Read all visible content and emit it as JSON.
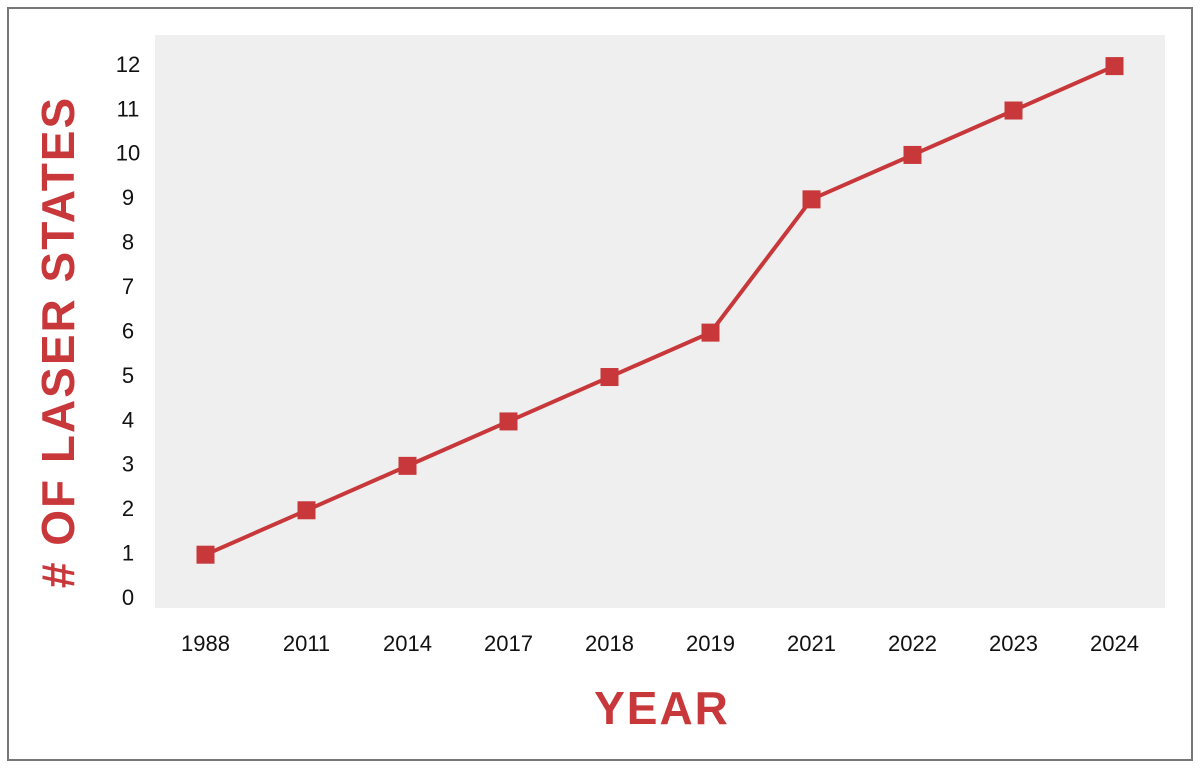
{
  "chart_data": {
    "type": "line",
    "x_label": "YEAR",
    "y_label": "# OF LASER STATES",
    "categories": [
      "1988",
      "2011",
      "2014",
      "2017",
      "2018",
      "2019",
      "2021",
      "2022",
      "2023",
      "2024"
    ],
    "values": [
      1,
      2,
      3,
      4,
      5,
      6,
      9,
      10,
      11,
      12
    ],
    "color": "#c8373a",
    "ylim": [
      -0.2,
      12.7
    ],
    "yticks": [
      0,
      1,
      2,
      3,
      4,
      5,
      6,
      7,
      8,
      9,
      10,
      11,
      12
    ],
    "grid": false
  }
}
